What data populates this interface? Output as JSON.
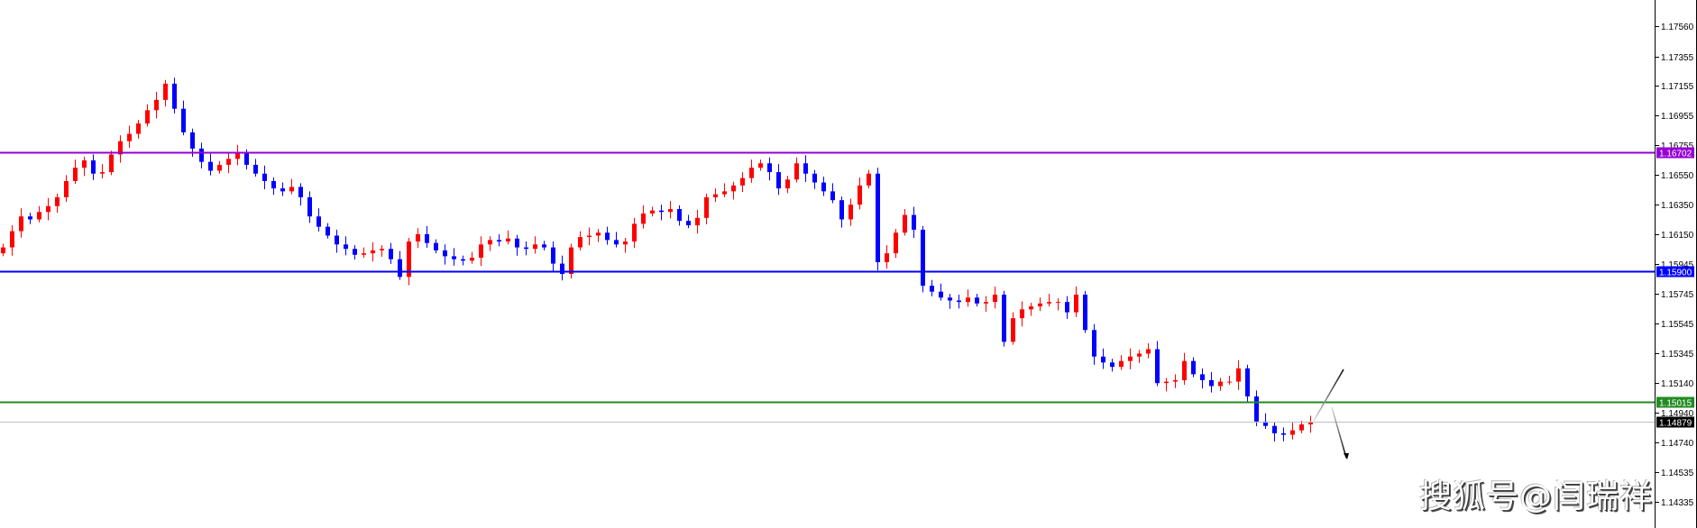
{
  "chart_data": {
    "type": "candlestick",
    "title": "",
    "y_axis": {
      "position": "right",
      "ticks": [
        "1.17560",
        "1.17355",
        "1.17155",
        "1.16955",
        "1.16755",
        "1.16550",
        "1.16350",
        "1.16150",
        "1.15945",
        "1.15745",
        "1.15545",
        "1.15345",
        "1.15140",
        "1.14940",
        "1.14740",
        "1.14535",
        "1.14335"
      ],
      "ylim": [
        1.142,
        1.1774
      ]
    },
    "grid": false,
    "colors": {
      "bullish": "#ff0000",
      "bearish": "#0000ff"
    },
    "first_open": 1.1602,
    "closes": [
      1.1606,
      1.1617,
      1.1627,
      1.1625,
      1.163,
      1.1634,
      1.164,
      1.1651,
      1.166,
      1.1665,
      1.1656,
      1.1657,
      1.1669,
      1.1678,
      1.1683,
      1.169,
      1.1699,
      1.1706,
      1.1717,
      1.17,
      1.1684,
      1.1673,
      1.1664,
      1.1658,
      1.1662,
      1.1666,
      1.167,
      1.1662,
      1.1656,
      1.1651,
      1.1646,
      1.1644,
      1.1647,
      1.164,
      1.1627,
      1.162,
      1.1614,
      1.1608,
      1.1605,
      1.1601,
      1.1602,
      1.1604,
      1.1605,
      1.1598,
      1.1586,
      1.161,
      1.1615,
      1.1609,
      1.1604,
      1.16,
      1.1598,
      1.1597,
      1.1599,
      1.1608,
      1.1611,
      1.161,
      1.1612,
      1.1606,
      1.1605,
      1.1608,
      1.1606,
      1.1595,
      1.1588,
      1.1606,
      1.1613,
      1.1614,
      1.1616,
      1.1611,
      1.1608,
      1.161,
      1.1622,
      1.1629,
      1.1631,
      1.163,
      1.1632,
      1.1624,
      1.1621,
      1.1626,
      1.164,
      1.1642,
      1.1644,
      1.1648,
      1.1653,
      1.166,
      1.1663,
      1.1657,
      1.1646,
      1.1652,
      1.1663,
      1.1656,
      1.165,
      1.1644,
      1.1638,
      1.1625,
      1.1635,
      1.1648,
      1.1656,
      1.1596,
      1.1602,
      1.1616,
      1.1628,
      1.1618,
      1.158,
      1.1576,
      1.1572,
      1.157,
      1.1569,
      1.1572,
      1.1568,
      1.1569,
      1.1574,
      1.1542,
      1.1558,
      1.1564,
      1.1566,
      1.1568,
      1.1569,
      1.1569,
      1.1562,
      1.1574,
      1.155,
      1.1532,
      1.1528,
      1.1525,
      1.1529,
      1.1532,
      1.1534,
      1.1537,
      1.1514,
      1.1515,
      1.1516,
      1.1529,
      1.152,
      1.1516,
      1.1512,
      1.1515,
      1.1515,
      1.1524,
      1.1505,
      1.1488,
      1.1485,
      1.148,
      1.1479,
      1.1482,
      1.1486,
      1.14879
    ],
    "levels": [
      {
        "price": 1.16702,
        "label": "1.16702",
        "color": "#9400d3"
      },
      {
        "price": 1.159,
        "label": "1.15900",
        "color": "#0000ff"
      },
      {
        "price": 1.15015,
        "label": "1.15015",
        "color": "#228b22"
      },
      {
        "price": 1.14879,
        "label": "1.14879",
        "color": "#000000",
        "line_color": "#c0c0c0",
        "kind": "current-price"
      }
    ],
    "annotations": [
      {
        "kind": "arrow",
        "direction": "up"
      },
      {
        "kind": "arrow",
        "direction": "down"
      }
    ]
  },
  "watermark": "搜狐号@闫瑞祥"
}
